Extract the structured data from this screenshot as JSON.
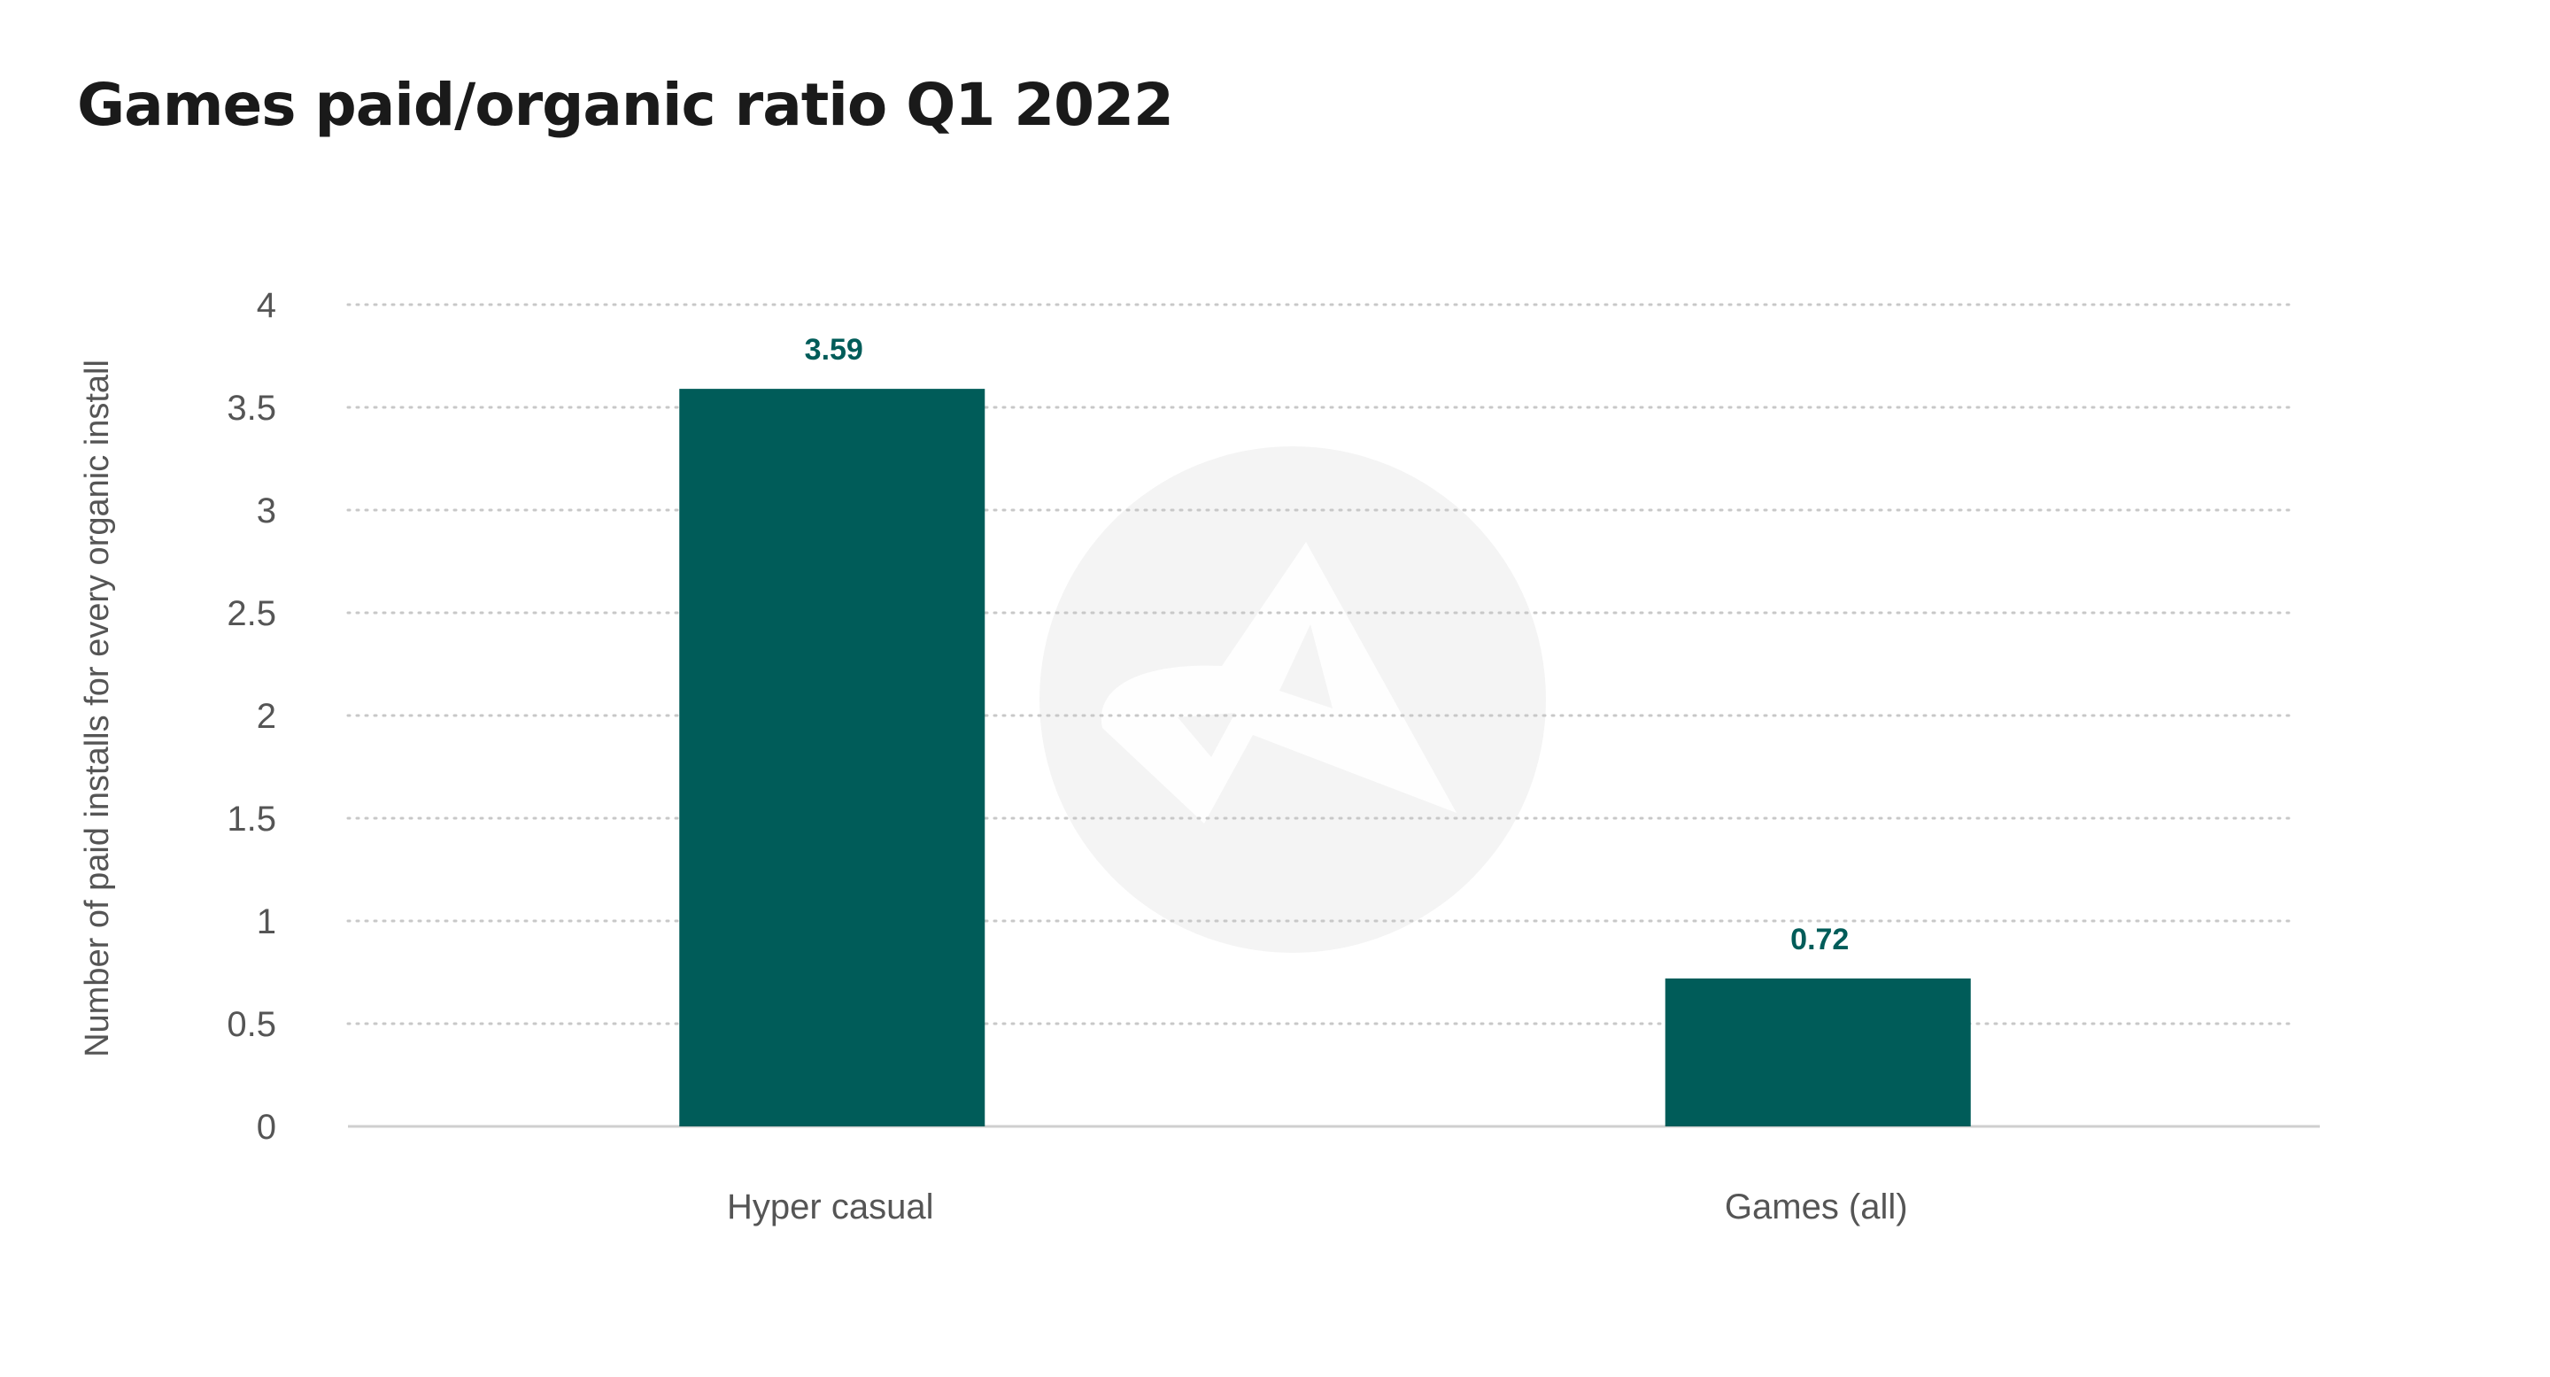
{
  "chart_data": {
    "type": "bar",
    "title": "Games paid/organic ratio Q1 2022",
    "categories": [
      "Hyper casual",
      "Games (all)"
    ],
    "values": [
      3.59,
      0.72
    ],
    "data_labels": [
      "3.59",
      "0.72"
    ],
    "xlabel": "",
    "ylabel": "Number of paid installs for every organic install",
    "ylim": [
      0,
      4
    ],
    "yticks": [
      0,
      0.5,
      1,
      1.5,
      2,
      2.5,
      3,
      3.5,
      4
    ],
    "ytick_labels": [
      "0",
      "0.5",
      "1",
      "1.5",
      "2",
      "2.5",
      "3",
      "3.5",
      "4"
    ],
    "grid": true,
    "grid_style": "dotted",
    "bar_color": "#005c59",
    "label_color": "#005c59",
    "watermark": "logo"
  }
}
